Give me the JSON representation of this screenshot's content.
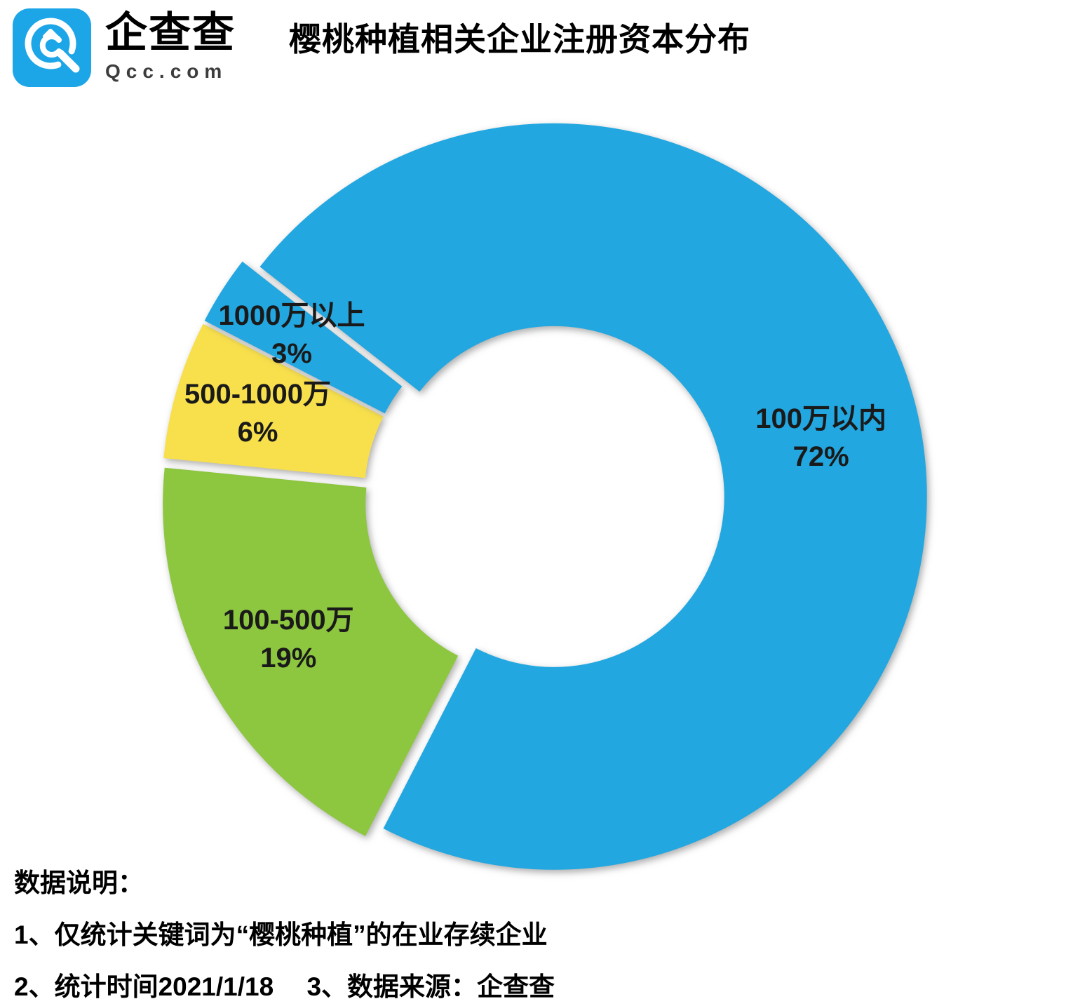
{
  "header": {
    "brand": {
      "name": "企查查",
      "domain": "Qcc.com",
      "logo_color": "#1CA6E8"
    },
    "title": "樱桃种植相关企业注册资本分布"
  },
  "chart_data": {
    "type": "pie",
    "donut": true,
    "title": "樱桃种植相关企业注册资本分布",
    "categories": [
      "100万以内",
      "100-500万",
      "500-1000万",
      "1000万以上"
    ],
    "values": [
      72,
      19,
      6,
      3
    ],
    "unit": "%",
    "colors": [
      "#23A7E0",
      "#8DC63F",
      "#F8E04C",
      "#23A7E0"
    ],
    "rotation_deg": -52,
    "legend": "none",
    "label_style": "category-and-percent-inside-slices"
  },
  "notes": {
    "heading": "数据说明：",
    "line1": "1、仅统计关键词为“樱桃种植”的在业存续企业",
    "line2": "2、统计时间2021/1/18　 3、数据来源：企查查"
  }
}
